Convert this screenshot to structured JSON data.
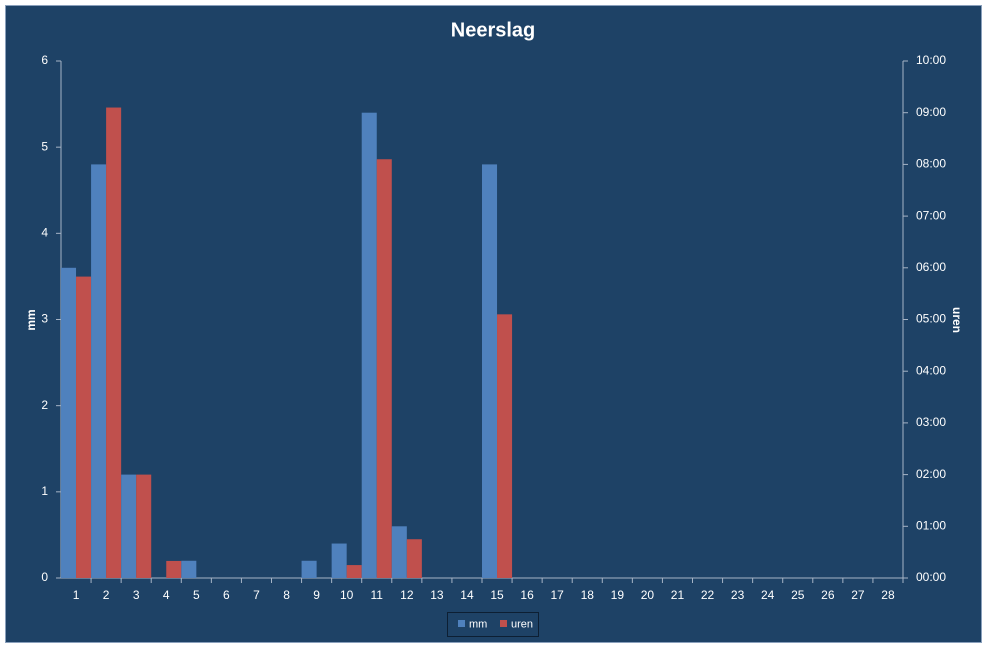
{
  "chart_data": {
    "type": "bar",
    "title": "Neerslag",
    "ylabel": "mm",
    "y2label": "uren",
    "categories": [
      "1",
      "2",
      "3",
      "4",
      "5",
      "6",
      "7",
      "8",
      "9",
      "10",
      "11",
      "12",
      "13",
      "14",
      "15",
      "16",
      "17",
      "18",
      "19",
      "20",
      "21",
      "22",
      "23",
      "24",
      "25",
      "26",
      "27",
      "28"
    ],
    "series": [
      {
        "name": "mm",
        "color": "#4f81bd",
        "values": [
          3.6,
          4.8,
          1.2,
          0,
          0.2,
          0,
          0,
          0,
          0.2,
          0.4,
          5.4,
          0.6,
          0,
          0,
          4.8,
          0,
          0,
          0,
          0,
          0,
          0,
          0,
          0,
          0,
          0,
          0,
          0,
          0
        ]
      },
      {
        "name": "uren",
        "color": "#c0504d",
        "axis": "y2",
        "values": [
          5.83,
          9.1,
          2,
          0.33,
          0,
          0,
          0,
          0,
          0,
          0.25,
          8.1,
          0.75,
          0,
          0,
          5.1,
          0,
          0,
          0,
          0,
          0,
          0,
          0,
          0,
          0,
          0,
          0,
          0,
          0
        ]
      }
    ],
    "ylim": [
      0,
      6
    ],
    "yticks": [
      0,
      1,
      2,
      3,
      4,
      5,
      6
    ],
    "y2lim": [
      0,
      10
    ],
    "y2ticks": [
      {
        "value": 0,
        "label": "00:00"
      },
      {
        "value": 1,
        "label": "01:00"
      },
      {
        "value": 2,
        "label": "02:00"
      },
      {
        "value": 3,
        "label": "03:00"
      },
      {
        "value": 4,
        "label": "04:00"
      },
      {
        "value": 5,
        "label": "05:00"
      },
      {
        "value": 6,
        "label": "06:00"
      },
      {
        "value": 7,
        "label": "07:00"
      },
      {
        "value": 8,
        "label": "08:00"
      },
      {
        "value": 9,
        "label": "09:00"
      },
      {
        "value": 10,
        "label": "10:00"
      }
    ],
    "grid": false,
    "legend": "bottom"
  }
}
